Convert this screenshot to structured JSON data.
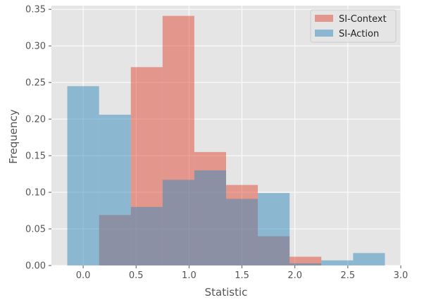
{
  "chart_data": {
    "type": "bar",
    "style": "ggplot",
    "grid": true,
    "legend_position": "top-right",
    "xlabel": "Statistic",
    "ylabel": "Frequency",
    "xlim": [
      -0.3,
      3.0
    ],
    "ylim": [
      0,
      0.355
    ],
    "x_ticks": [
      0.0,
      0.5,
      1.0,
      1.5,
      2.0,
      2.5,
      3.0
    ],
    "x_tick_labels": [
      "0.0",
      "0.5",
      "1.0",
      "1.5",
      "2.0",
      "2.5",
      "3.0"
    ],
    "y_ticks": [
      0.0,
      0.05,
      0.1,
      0.15,
      0.2,
      0.25,
      0.3,
      0.35
    ],
    "y_tick_labels": [
      "0.00",
      "0.05",
      "0.10",
      "0.15",
      "0.20",
      "0.25",
      "0.30",
      "0.35"
    ],
    "series": [
      {
        "name": "SI-Context",
        "color": "#E24A33",
        "alpha": 0.5,
        "bins": [
          {
            "x0": 0.15,
            "x1": 0.45,
            "value": 0.069
          },
          {
            "x0": 0.45,
            "x1": 0.75,
            "value": 0.271
          },
          {
            "x0": 0.75,
            "x1": 1.05,
            "value": 0.341
          },
          {
            "x0": 1.05,
            "x1": 1.35,
            "value": 0.155
          },
          {
            "x0": 1.35,
            "x1": 1.65,
            "value": 0.11
          },
          {
            "x0": 1.65,
            "x1": 1.95,
            "value": 0.04
          },
          {
            "x0": 1.95,
            "x1": 2.25,
            "value": 0.012
          }
        ]
      },
      {
        "name": "SI-Action",
        "color": "#348ABD",
        "alpha": 0.5,
        "bins": [
          {
            "x0": -0.15,
            "x1": 0.15,
            "value": 0.245
          },
          {
            "x0": 0.15,
            "x1": 0.45,
            "value": 0.206
          },
          {
            "x0": 0.45,
            "x1": 0.75,
            "value": 0.08
          },
          {
            "x0": 0.75,
            "x1": 1.05,
            "value": 0.117
          },
          {
            "x0": 1.05,
            "x1": 1.35,
            "value": 0.13
          },
          {
            "x0": 1.35,
            "x1": 1.65,
            "value": 0.091
          },
          {
            "x0": 1.65,
            "x1": 1.95,
            "value": 0.099
          },
          {
            "x0": 1.95,
            "x1": 2.25,
            "value": 0.003
          },
          {
            "x0": 2.25,
            "x1": 2.55,
            "value": 0.007
          },
          {
            "x0": 2.55,
            "x1": 2.85,
            "value": 0.017
          }
        ]
      }
    ]
  }
}
